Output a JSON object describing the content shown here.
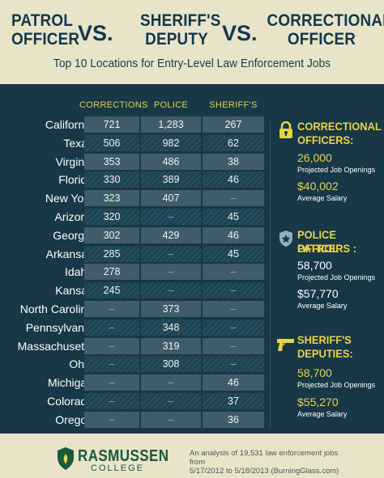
{
  "header": {
    "title_left_1": "PATROL",
    "title_left_2": "OFFICER",
    "vs_1": "VS.",
    "title_mid_1": "SHERIFF'S",
    "title_mid_2": "DEPUTY",
    "vs_2": "VS.",
    "title_right_1": "CORRECTIONAL",
    "title_right_2": "OFFICER",
    "subtitle": "Top 10 Locations for Entry-Level Law Enforcement Jobs"
  },
  "table": {
    "columns": [
      "CORRECTIONS",
      "POLICE",
      "SHERIFF'S"
    ],
    "rows": [
      {
        "state": "California",
        "corrections": "721",
        "police": "1,283",
        "sheriffs": "267"
      },
      {
        "state": "Texas",
        "corrections": "506",
        "police": "982",
        "sheriffs": "62"
      },
      {
        "state": "Virginia",
        "corrections": "353",
        "police": "486",
        "sheriffs": "38"
      },
      {
        "state": "Florida",
        "corrections": "330",
        "police": "389",
        "sheriffs": "46"
      },
      {
        "state": "New York",
        "corrections": "323",
        "police": "407",
        "sheriffs": "–"
      },
      {
        "state": "Arizona",
        "corrections": "320",
        "police": "–",
        "sheriffs": "45"
      },
      {
        "state": "Georgia",
        "corrections": "302",
        "police": "429",
        "sheriffs": "46"
      },
      {
        "state": "Arkansas",
        "corrections": "285",
        "police": "–",
        "sheriffs": "45"
      },
      {
        "state": "Idaho",
        "corrections": "278",
        "police": "–",
        "sheriffs": "–"
      },
      {
        "state": "Kansas",
        "corrections": "245",
        "police": "–",
        "sheriffs": "–"
      },
      {
        "state": "North Carolina",
        "corrections": "–",
        "police": "373",
        "sheriffs": "–"
      },
      {
        "state": "Pennsylvania",
        "corrections": "–",
        "police": "348",
        "sheriffs": "–"
      },
      {
        "state": "Massachusetts",
        "corrections": "–",
        "police": "319",
        "sheriffs": "–"
      },
      {
        "state": "Ohio",
        "corrections": "–",
        "police": "308",
        "sheriffs": "–"
      },
      {
        "state": "Michigan",
        "corrections": "–",
        "police": "–",
        "sheriffs": "46"
      },
      {
        "state": "Colorado",
        "corrections": "–",
        "police": "–",
        "sheriffs": "37"
      },
      {
        "state": "Oregon",
        "corrections": "–",
        "police": "–",
        "sheriffs": "36"
      }
    ]
  },
  "sidebar": {
    "correctional": {
      "title_1": "CORRECTIONAL",
      "title_2": "OFFICERS:",
      "openings": "26,000",
      "openings_label": "Projected Job Openings",
      "salary": "$40,002",
      "salary_label": "Average Salary",
      "icon": "padlock-icon"
    },
    "police": {
      "title_1": "POLICE PATROL",
      "title_2": "OFFICERS :",
      "openings": "58,700",
      "openings_label": "Projected Job Openings",
      "salary": "$57,770",
      "salary_label": "Average Salary",
      "icon": "police-badge-icon"
    },
    "sheriff": {
      "title_1": "SHERIFF'S",
      "title_2": "DEPUTIES:",
      "openings": "58,700",
      "openings_label": "Projected Job Openings",
      "salary": "$55,270",
      "salary_label": "Average Salary",
      "icon": "handgun-icon"
    }
  },
  "footer": {
    "logo_main": "RASMUSSEN",
    "logo_sub": "COLLEGE",
    "note_1": "An analysis of 19,531 law enforcement jobs from",
    "note_2": "5/17/2012 to 5/18/2013 (BurningGlass.com)"
  },
  "colors": {
    "navy": "#173847",
    "accent_yellow": "#e8d24a",
    "header_bg": "#e8e4ca",
    "logo_green": "#1a5a3c"
  }
}
